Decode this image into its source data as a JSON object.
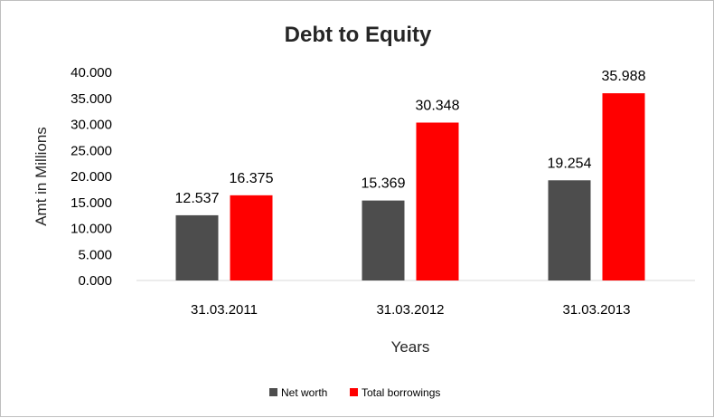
{
  "chart_data": {
    "type": "bar",
    "title": "Debt to Equity",
    "xlabel": "Years",
    "ylabel": "Amt in Millions",
    "categories": [
      "31.03.2011",
      "31.03.2012",
      "31.03.2013"
    ],
    "series": [
      {
        "name": "Net worth",
        "values": [
          12.537,
          15.369,
          19.254
        ],
        "color": "#4d4d4d"
      },
      {
        "name": "Total borrowings",
        "values": [
          16.375,
          30.348,
          35.988
        ],
        "color": "#ff0000"
      }
    ],
    "ylim": [
      0,
      40
    ],
    "yticks": [
      0,
      5,
      10,
      15,
      20,
      25,
      30,
      35,
      40
    ],
    "ytick_labels": [
      "0.000",
      "5.000",
      "10.000",
      "15.000",
      "20.000",
      "25.000",
      "30.000",
      "35.000",
      "40.000"
    ],
    "data_labels": [
      [
        "12.537",
        "15.369",
        "19.254"
      ],
      [
        "16.375",
        "30.348",
        "35.988"
      ]
    ],
    "grid": false,
    "legend": "bottom"
  }
}
